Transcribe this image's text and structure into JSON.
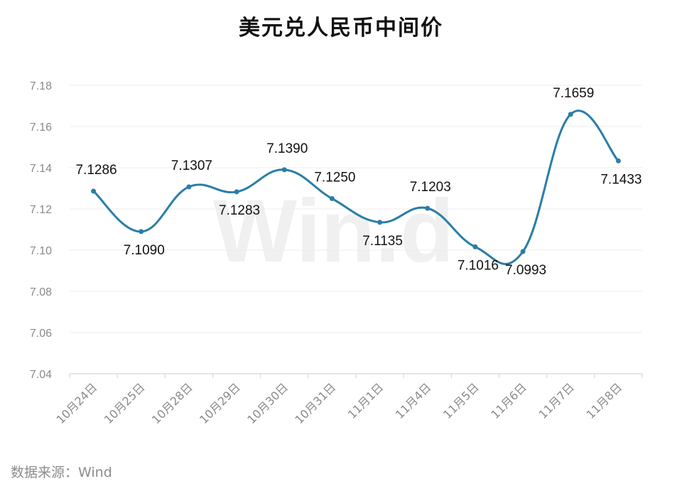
{
  "chart_data": {
    "type": "line",
    "title": "美元兑人民币中间价",
    "xlabel": "",
    "ylabel": "",
    "categories": [
      "10月24日",
      "10月25日",
      "10月28日",
      "10月29日",
      "10月30日",
      "10月31日",
      "11月1日",
      "11月4日",
      "11月5日",
      "11月6日",
      "11月7日",
      "11月8日"
    ],
    "series": [
      {
        "values": [
          7.1286,
          7.109,
          7.1307,
          7.1283,
          7.139,
          7.125,
          7.1135,
          7.1203,
          7.1016,
          7.0993,
          7.1659,
          7.1433
        ]
      }
    ],
    "data_labels": [
      "7.1286",
      "7.1090",
      "7.1307",
      "7.1283",
      "7.1390",
      "7.1250",
      "7.1135",
      "7.1203",
      "7.1016",
      "7.0993",
      "7.1659",
      "7.1433"
    ],
    "yticks": [
      "7.04",
      "7.06",
      "7.08",
      "7.10",
      "7.12",
      "7.14",
      "7.16",
      "7.18"
    ],
    "ylim": [
      7.04,
      7.18
    ],
    "grid": true,
    "line_color": "#2a7ea8",
    "watermark": "Win.d"
  },
  "source": "数据来源：Wind"
}
